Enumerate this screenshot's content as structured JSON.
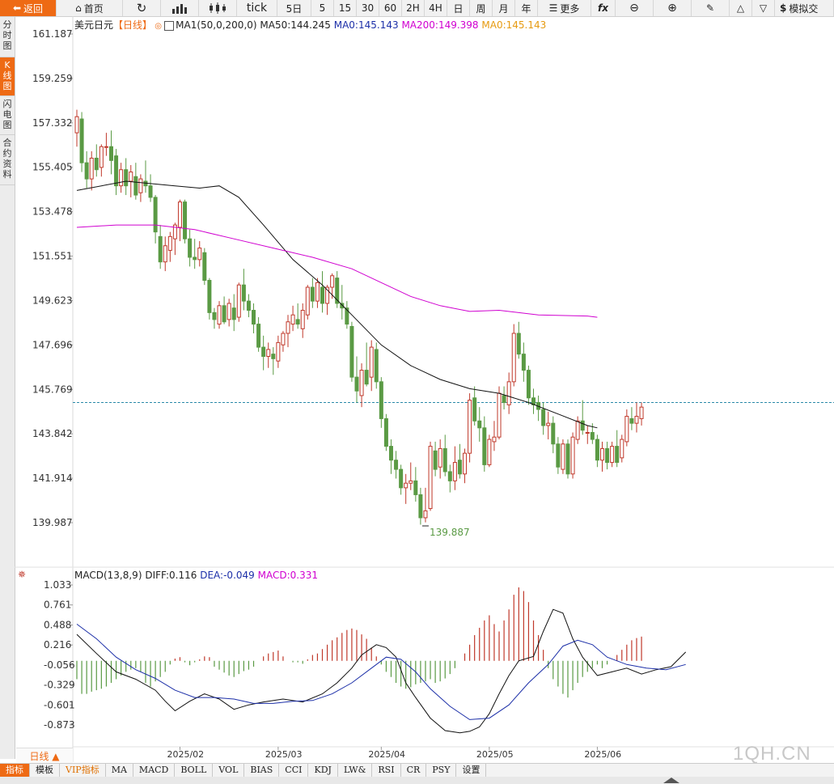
{
  "toolbar": {
    "back": "返回",
    "home": "首页",
    "tick": "tick",
    "periods": [
      "5日",
      "5",
      "15",
      "30",
      "60",
      "2H",
      "4H",
      "日",
      "周",
      "月",
      "年"
    ],
    "more": "更多",
    "fx": "fx",
    "simulate": "模拟交"
  },
  "sidebar": [
    {
      "label": "分时图",
      "active": false
    },
    {
      "label": "K线图",
      "active": true
    },
    {
      "label": "闪电图",
      "active": false
    },
    {
      "label": "合约资料",
      "active": false
    }
  ],
  "info": {
    "symbol": "美元日元",
    "period": "【日线】",
    "ma_group": "MA1(50,0,200,0)",
    "ma50": "MA50:144.245",
    "ma0a": "MA0:145.143",
    "ma200": "MA200:149.398",
    "ma0b": "MA0:145.143"
  },
  "macd_info": {
    "title": "MACD(13,8,9)",
    "diff": "DIFF:0.116",
    "dea": "DEA:-0.049",
    "macd": "MACD:0.331"
  },
  "period_label": "日线 ▲",
  "tabs": [
    {
      "label": "指标",
      "active": true
    },
    {
      "label": "模板"
    },
    {
      "label": "VIP指标",
      "vip": true
    },
    {
      "label": "MA"
    },
    {
      "label": "MACD"
    },
    {
      "label": "BOLL"
    },
    {
      "label": "VOL"
    },
    {
      "label": "BIAS"
    },
    {
      "label": "CCI"
    },
    {
      "label": "KDJ"
    },
    {
      "label": "LW&"
    },
    {
      "label": "RSI"
    },
    {
      "label": "CR"
    },
    {
      "label": "PSY"
    },
    {
      "label": "设置"
    }
  ],
  "watermark": "1QH.CN",
  "colors": {
    "up": "#c0392b",
    "down": "#5a9a44",
    "ma50": "#111111",
    "ma200": "#d000d0",
    "dea": "#1c2fa8",
    "accent": "#ee6a14"
  },
  "chart_data": {
    "type": "candlestick",
    "price_ticks": [
      "161.187",
      "159.259",
      "157.332",
      "155.405",
      "153.478",
      "151.551",
      "149.623",
      "147.696",
      "145.769",
      "143.842",
      "141.914",
      "139.987"
    ],
    "price_range": [
      139.987,
      161.187
    ],
    "macd_ticks": [
      "1.033",
      "0.761",
      "0.488",
      "0.216",
      "-0.056",
      "-0.329",
      "-0.601",
      "-0.873"
    ],
    "x_ticks": [
      {
        "label": "2025/02",
        "index": 21
      },
      {
        "label": "2025/03",
        "index": 41
      },
      {
        "label": "2025/04",
        "index": 62
      },
      {
        "label": "2025/05",
        "index": 84
      },
      {
        "label": "2025/06",
        "index": 106
      }
    ],
    "last_price": 145.2,
    "low_label": "139.887",
    "low_index": 71,
    "candles": [
      [
        156.9,
        157.9,
        156.3,
        157.6
      ],
      [
        157.5,
        157.8,
        155.2,
        155.6
      ],
      [
        155.6,
        156.1,
        154.5,
        154.9
      ],
      [
        154.9,
        156.1,
        154.4,
        155.8
      ],
      [
        155.8,
        156.4,
        155.0,
        155.3
      ],
      [
        155.4,
        156.4,
        155.0,
        156.3
      ],
      [
        156.3,
        156.9,
        155.9,
        156.3
      ],
      [
        156.3,
        157.0,
        155.1,
        155.7
      ],
      [
        155.9,
        156.2,
        154.2,
        154.6
      ],
      [
        154.6,
        155.6,
        154.3,
        155.3
      ],
      [
        155.3,
        155.8,
        154.2,
        154.6
      ],
      [
        154.8,
        155.5,
        154.1,
        155.2
      ],
      [
        155.0,
        155.6,
        154.0,
        154.2
      ],
      [
        154.3,
        155.1,
        153.9,
        154.9
      ],
      [
        154.8,
        155.7,
        154.3,
        154.6
      ],
      [
        154.6,
        155.1,
        153.9,
        154.1
      ],
      [
        154.1,
        154.2,
        152.1,
        152.6
      ],
      [
        152.4,
        152.9,
        151.0,
        151.3
      ],
      [
        151.3,
        152.4,
        150.9,
        152.0
      ],
      [
        151.8,
        152.6,
        151.3,
        152.4
      ],
      [
        152.3,
        153.0,
        151.6,
        152.9
      ],
      [
        152.8,
        154.0,
        152.2,
        153.9
      ],
      [
        153.9,
        154.0,
        152.1,
        152.3
      ],
      [
        152.3,
        152.7,
        151.1,
        151.5
      ],
      [
        151.5,
        152.3,
        151.0,
        151.4
      ],
      [
        151.4,
        152.2,
        151.1,
        151.9
      ],
      [
        151.7,
        151.9,
        150.3,
        150.5
      ],
      [
        150.5,
        150.6,
        148.8,
        149.1
      ],
      [
        149.1,
        149.3,
        148.4,
        148.8
      ],
      [
        148.6,
        149.6,
        148.4,
        149.4
      ],
      [
        149.4,
        149.8,
        148.6,
        148.7
      ],
      [
        148.8,
        149.7,
        148.5,
        149.5
      ],
      [
        149.3,
        149.9,
        148.3,
        148.8
      ],
      [
        148.9,
        150.4,
        148.7,
        150.3
      ],
      [
        150.3,
        151.0,
        149.2,
        149.6
      ],
      [
        149.6,
        149.9,
        148.9,
        149.2
      ],
      [
        149.2,
        149.5,
        148.2,
        148.6
      ],
      [
        148.6,
        148.9,
        147.4,
        147.6
      ],
      [
        147.6,
        148.1,
        146.6,
        147.2
      ],
      [
        147.2,
        147.8,
        146.7,
        147.5
      ],
      [
        147.3,
        147.6,
        146.4,
        147.1
      ],
      [
        147.0,
        148.1,
        146.7,
        147.8
      ],
      [
        147.7,
        148.3,
        147.4,
        148.2
      ],
      [
        148.2,
        149.0,
        147.6,
        148.7
      ],
      [
        148.6,
        149.4,
        148.3,
        149.0
      ],
      [
        148.8,
        149.5,
        148.4,
        148.6
      ],
      [
        148.4,
        149.5,
        148.0,
        149.2
      ],
      [
        149.0,
        150.3,
        148.8,
        150.2
      ],
      [
        150.2,
        150.6,
        149.3,
        149.6
      ],
      [
        149.6,
        150.6,
        149.3,
        150.4
      ],
      [
        150.2,
        150.9,
        149.1,
        149.5
      ],
      [
        149.5,
        150.3,
        149.0,
        150.2
      ],
      [
        150.2,
        150.8,
        149.7,
        150.7
      ],
      [
        150.6,
        150.9,
        149.3,
        149.5
      ],
      [
        149.5,
        150.3,
        148.8,
        149.3
      ],
      [
        149.3,
        149.6,
        148.4,
        148.6
      ],
      [
        148.5,
        148.7,
        146.1,
        146.3
      ],
      [
        146.3,
        147.2,
        145.2,
        145.7
      ],
      [
        145.5,
        146.9,
        145.0,
        146.6
      ],
      [
        146.6,
        147.8,
        145.9,
        146.0
      ],
      [
        146.3,
        147.9,
        145.7,
        147.6
      ],
      [
        147.5,
        147.8,
        145.8,
        146.1
      ],
      [
        146.1,
        146.3,
        144.1,
        144.5
      ],
      [
        144.5,
        144.7,
        143.1,
        143.3
      ],
      [
        143.3,
        143.6,
        142.1,
        142.7
      ],
      [
        142.7,
        143.1,
        141.9,
        142.3
      ],
      [
        142.3,
        142.5,
        141.2,
        141.5
      ],
      [
        141.5,
        142.1,
        140.8,
        141.7
      ],
      [
        141.7,
        142.6,
        141.4,
        141.8
      ],
      [
        141.8,
        142.4,
        140.9,
        141.2
      ],
      [
        141.2,
        141.5,
        139.9,
        140.2
      ],
      [
        140.2,
        141.5,
        140.0,
        140.5
      ],
      [
        140.6,
        143.5,
        140.5,
        143.3
      ],
      [
        143.1,
        143.5,
        142.0,
        142.3
      ],
      [
        142.4,
        143.6,
        141.9,
        143.2
      ],
      [
        143.2,
        143.8,
        142.0,
        142.2
      ],
      [
        142.2,
        142.5,
        141.3,
        141.8
      ],
      [
        141.8,
        143.3,
        141.4,
        142.6
      ],
      [
        142.7,
        143.4,
        141.9,
        142.1
      ],
      [
        142.1,
        143.2,
        141.7,
        143.0
      ],
      [
        143.0,
        145.6,
        142.6,
        145.3
      ],
      [
        145.4,
        145.9,
        144.2,
        144.4
      ],
      [
        144.4,
        145.0,
        143.5,
        144.1
      ],
      [
        144.1,
        144.6,
        142.2,
        142.5
      ],
      [
        142.5,
        143.8,
        142.4,
        143.6
      ],
      [
        143.5,
        144.4,
        143.1,
        143.7
      ],
      [
        143.7,
        145.9,
        143.6,
        145.6
      ],
      [
        145.5,
        145.9,
        144.9,
        145.2
      ],
      [
        145.1,
        146.5,
        144.7,
        146.1
      ],
      [
        146.1,
        148.6,
        145.9,
        148.2
      ],
      [
        148.2,
        148.7,
        147.1,
        147.3
      ],
      [
        147.3,
        147.8,
        146.1,
        146.6
      ],
      [
        146.6,
        146.8,
        145.1,
        145.4
      ],
      [
        145.4,
        145.8,
        144.7,
        145.1
      ],
      [
        145.2,
        145.5,
        144.4,
        144.9
      ],
      [
        144.9,
        145.2,
        143.8,
        144.2
      ],
      [
        144.2,
        144.8,
        143.6,
        144.3
      ],
      [
        144.3,
        144.6,
        143.0,
        143.4
      ],
      [
        143.4,
        143.7,
        142.1,
        142.4
      ],
      [
        142.3,
        143.6,
        142.1,
        143.4
      ],
      [
        143.4,
        143.6,
        141.9,
        142.1
      ],
      [
        142.1,
        143.9,
        141.9,
        143.7
      ],
      [
        143.6,
        144.6,
        143.4,
        144.4
      ],
      [
        144.4,
        145.3,
        143.8,
        144.0
      ],
      [
        143.9,
        144.2,
        143.4,
        143.9
      ],
      [
        143.9,
        144.3,
        143.4,
        143.6
      ],
      [
        143.6,
        143.8,
        142.4,
        142.7
      ],
      [
        142.7,
        143.5,
        142.2,
        143.2
      ],
      [
        143.2,
        143.5,
        142.3,
        142.6
      ],
      [
        142.6,
        143.5,
        142.4,
        143.3
      ],
      [
        143.3,
        144.0,
        142.4,
        142.6
      ],
      [
        142.8,
        143.8,
        142.6,
        143.6
      ],
      [
        143.5,
        144.9,
        143.3,
        144.6
      ],
      [
        144.5,
        145.0,
        144.0,
        144.3
      ],
      [
        144.3,
        145.2,
        143.9,
        144.6
      ],
      [
        144.5,
        145.2,
        144.2,
        145.0
      ]
    ],
    "ma50": [
      [
        0,
        154.4
      ],
      [
        10,
        154.8
      ],
      [
        20,
        154.6
      ],
      [
        25,
        154.5
      ],
      [
        29,
        154.6
      ],
      [
        33,
        154.1
      ],
      [
        38,
        152.9
      ],
      [
        44,
        151.4
      ],
      [
        50,
        150.3
      ],
      [
        56,
        149.0
      ],
      [
        62,
        147.7
      ],
      [
        68,
        146.8
      ],
      [
        74,
        146.2
      ],
      [
        80,
        145.8
      ],
      [
        86,
        145.6
      ],
      [
        92,
        145.2
      ],
      [
        98,
        144.7
      ],
      [
        104,
        144.2
      ],
      [
        106,
        144.1
      ]
    ],
    "ma200": [
      [
        0,
        152.8
      ],
      [
        8,
        152.9
      ],
      [
        16,
        152.9
      ],
      [
        24,
        152.7
      ],
      [
        32,
        152.3
      ],
      [
        40,
        151.9
      ],
      [
        48,
        151.5
      ],
      [
        56,
        151.0
      ],
      [
        62,
        150.4
      ],
      [
        68,
        149.8
      ],
      [
        74,
        149.4
      ],
      [
        80,
        149.15
      ],
      [
        86,
        149.2
      ],
      [
        94,
        149.0
      ],
      [
        104,
        148.95
      ],
      [
        106,
        148.9
      ]
    ],
    "macd_range": [
      -1.05,
      1.1
    ],
    "diff": [
      [
        0,
        0.36
      ],
      [
        4,
        0.1
      ],
      [
        8,
        -0.15
      ],
      [
        12,
        -0.25
      ],
      [
        16,
        -0.4
      ],
      [
        18,
        -0.55
      ],
      [
        20,
        -0.68
      ],
      [
        23,
        -0.55
      ],
      [
        26,
        -0.45
      ],
      [
        29,
        -0.52
      ],
      [
        32,
        -0.66
      ],
      [
        35,
        -0.6
      ],
      [
        38,
        -0.56
      ],
      [
        42,
        -0.52
      ],
      [
        46,
        -0.56
      ],
      [
        50,
        -0.45
      ],
      [
        53,
        -0.3
      ],
      [
        56,
        -0.1
      ],
      [
        58,
        0.08
      ],
      [
        61,
        0.22
      ],
      [
        63,
        0.18
      ],
      [
        65,
        0.05
      ],
      [
        67,
        -0.3
      ],
      [
        69,
        -0.5
      ],
      [
        72,
        -0.78
      ],
      [
        75,
        -0.95
      ],
      [
        78,
        -0.98
      ],
      [
        80,
        -0.96
      ],
      [
        82,
        -0.9
      ],
      [
        84,
        -0.72
      ],
      [
        86,
        -0.45
      ],
      [
        88,
        -0.2
      ],
      [
        90,
        0.0
      ],
      [
        93,
        0.06
      ],
      [
        95,
        0.4
      ],
      [
        97,
        0.7
      ],
      [
        99,
        0.65
      ],
      [
        101,
        0.3
      ],
      [
        103,
        0.05
      ],
      [
        106,
        -0.2
      ],
      [
        109,
        -0.15
      ],
      [
        112,
        -0.1
      ],
      [
        115,
        -0.18
      ],
      [
        118,
        -0.12
      ],
      [
        121,
        -0.08
      ],
      [
        124,
        0.12
      ]
    ],
    "dea": [
      [
        0,
        0.5
      ],
      [
        4,
        0.3
      ],
      [
        8,
        0.05
      ],
      [
        12,
        -0.12
      ],
      [
        16,
        -0.24
      ],
      [
        20,
        -0.4
      ],
      [
        24,
        -0.5
      ],
      [
        28,
        -0.5
      ],
      [
        32,
        -0.52
      ],
      [
        36,
        -0.58
      ],
      [
        40,
        -0.58
      ],
      [
        44,
        -0.55
      ],
      [
        48,
        -0.54
      ],
      [
        52,
        -0.45
      ],
      [
        56,
        -0.3
      ],
      [
        60,
        -0.1
      ],
      [
        63,
        0.05
      ],
      [
        66,
        0.02
      ],
      [
        69,
        -0.15
      ],
      [
        72,
        -0.38
      ],
      [
        76,
        -0.62
      ],
      [
        80,
        -0.8
      ],
      [
        84,
        -0.78
      ],
      [
        88,
        -0.6
      ],
      [
        92,
        -0.3
      ],
      [
        96,
        -0.05
      ],
      [
        99,
        0.2
      ],
      [
        102,
        0.28
      ],
      [
        105,
        0.22
      ],
      [
        108,
        0.05
      ],
      [
        112,
        -0.05
      ],
      [
        116,
        -0.1
      ],
      [
        120,
        -0.12
      ],
      [
        124,
        -0.05
      ]
    ],
    "macd_hist": [
      -0.25,
      -0.45,
      -0.45,
      -0.42,
      -0.4,
      -0.38,
      -0.35,
      -0.3,
      -0.25,
      -0.2,
      -0.15,
      -0.12,
      -0.1,
      -0.15,
      -0.3,
      -0.35,
      -0.28,
      -0.22,
      -0.15,
      -0.05,
      0.03,
      0.05,
      -0.02,
      -0.06,
      -0.02,
      0.02,
      0.06,
      0.05,
      -0.08,
      -0.12,
      -0.16,
      -0.2,
      -0.22,
      -0.18,
      -0.14,
      -0.12,
      -0.08,
      0.0,
      0.06,
      0.1,
      0.12,
      0.14,
      0.06,
      0.0,
      -0.02,
      -0.02,
      -0.04,
      0.02,
      0.08,
      0.1,
      0.16,
      0.22,
      0.28,
      0.32,
      0.38,
      0.42,
      0.44,
      0.42,
      0.36,
      0.3,
      0.18,
      0.06,
      -0.05,
      -0.15,
      -0.22,
      -0.3,
      -0.35,
      -0.38,
      -0.36,
      -0.32,
      -0.3,
      -0.28,
      -0.25,
      -0.3,
      -0.28,
      -0.24,
      -0.18,
      -0.1,
      0.0,
      0.1,
      0.22,
      0.35,
      0.45,
      0.55,
      0.62,
      0.5,
      0.4,
      0.55,
      0.7,
      0.9,
      1.0,
      0.95,
      0.8,
      0.55,
      0.35,
      0.15,
      -0.1,
      -0.25,
      -0.35,
      -0.45,
      -0.5,
      -0.4,
      -0.3,
      -0.22,
      -0.15,
      -0.1,
      -0.05,
      -0.1,
      -0.05,
      0.0,
      0.08,
      0.15,
      0.22,
      0.28,
      0.31,
      0.33
    ]
  }
}
